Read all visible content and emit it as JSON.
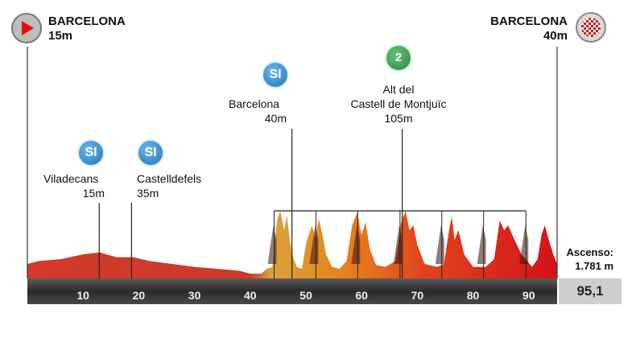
{
  "chart_data": {
    "type": "area",
    "x_unit": "km",
    "xlim": [
      0,
      95.1
    ],
    "x_ticks": [
      "10",
      "20",
      "30",
      "40",
      "50",
      "60",
      "70",
      "80",
      "90"
    ],
    "profile": [
      [
        0,
        15
      ],
      [
        2,
        18
      ],
      [
        6,
        20
      ],
      [
        10,
        25
      ],
      [
        13,
        27
      ],
      [
        16,
        22
      ],
      [
        19,
        22
      ],
      [
        22,
        18
      ],
      [
        26,
        15
      ],
      [
        30,
        12
      ],
      [
        34,
        10
      ],
      [
        38,
        8
      ],
      [
        40,
        5
      ],
      [
        42,
        5
      ],
      [
        43,
        10
      ],
      [
        44.0,
        12
      ],
      [
        44.8,
        60
      ],
      [
        45.4,
        70
      ],
      [
        46.1,
        50
      ],
      [
        46.6,
        65
      ],
      [
        47.1,
        40
      ],
      [
        47.8,
        20
      ],
      [
        48.4,
        12
      ],
      [
        49.3,
        10
      ],
      [
        50.1,
        38
      ],
      [
        51.1,
        55
      ],
      [
        51.7,
        42
      ],
      [
        52.3,
        62
      ],
      [
        53.0,
        45
      ],
      [
        53.6,
        25
      ],
      [
        54.7,
        12
      ],
      [
        56.0,
        10
      ],
      [
        57.3,
        18
      ],
      [
        58.3,
        55
      ],
      [
        59.2,
        68
      ],
      [
        60.0,
        45
      ],
      [
        60.7,
        58
      ],
      [
        61.5,
        30
      ],
      [
        62.6,
        14
      ],
      [
        64.3,
        12
      ],
      [
        66.1,
        18
      ],
      [
        67.1,
        58
      ],
      [
        67.9,
        70
      ],
      [
        68.6,
        50
      ],
      [
        69.3,
        55
      ],
      [
        70.0,
        35
      ],
      [
        71.3,
        15
      ],
      [
        73.6,
        12
      ],
      [
        74.8,
        15
      ],
      [
        75.7,
        50
      ],
      [
        76.2,
        64
      ],
      [
        76.7,
        40
      ],
      [
        77.4,
        50
      ],
      [
        78.4,
        25
      ],
      [
        80.0,
        12
      ],
      [
        82.3,
        12
      ],
      [
        83.8,
        20
      ],
      [
        84.8,
        60
      ],
      [
        85.6,
        50
      ],
      [
        86.3,
        55
      ],
      [
        87.3,
        42
      ],
      [
        88.7,
        25
      ],
      [
        90.6,
        12
      ],
      [
        91.6,
        20
      ],
      [
        92.3,
        45
      ],
      [
        92.9,
        55
      ],
      [
        93.6,
        40
      ],
      [
        94.4,
        25
      ],
      [
        95.1,
        15
      ]
    ],
    "climb_markers_km": [
      44.3,
      51.8,
      59.3,
      66.9,
      74.4,
      81.9,
      89.5
    ],
    "start": {
      "name": "BARCELONA",
      "altitude": "15m"
    },
    "finish": {
      "name": "BARCELONA",
      "altitude": "40m"
    },
    "waypoints": [
      {
        "km": 12.9,
        "name": "Viladecans",
        "altitude": "15m",
        "icon": "SI"
      },
      {
        "km": 18.7,
        "name": "Castelldefels",
        "altitude": "35m",
        "icon": "SI"
      },
      {
        "km": 47.5,
        "name": "Barcelona",
        "altitude": "40m",
        "icon": "SI"
      },
      {
        "km": 67.3,
        "name_line1": "Alt del",
        "name_line2": "Castell de Montjuïc",
        "altitude": "105m",
        "icon": "2"
      }
    ],
    "ascent_label": "Ascenso:",
    "ascent_value": "1.781 m",
    "total_distance": "95,1"
  },
  "colors": {
    "low": "#d23a2a",
    "orange": "#e8821e",
    "red": "#d41a1a",
    "dark": "#3a1010",
    "axis_bar": "#3a3a3a"
  }
}
